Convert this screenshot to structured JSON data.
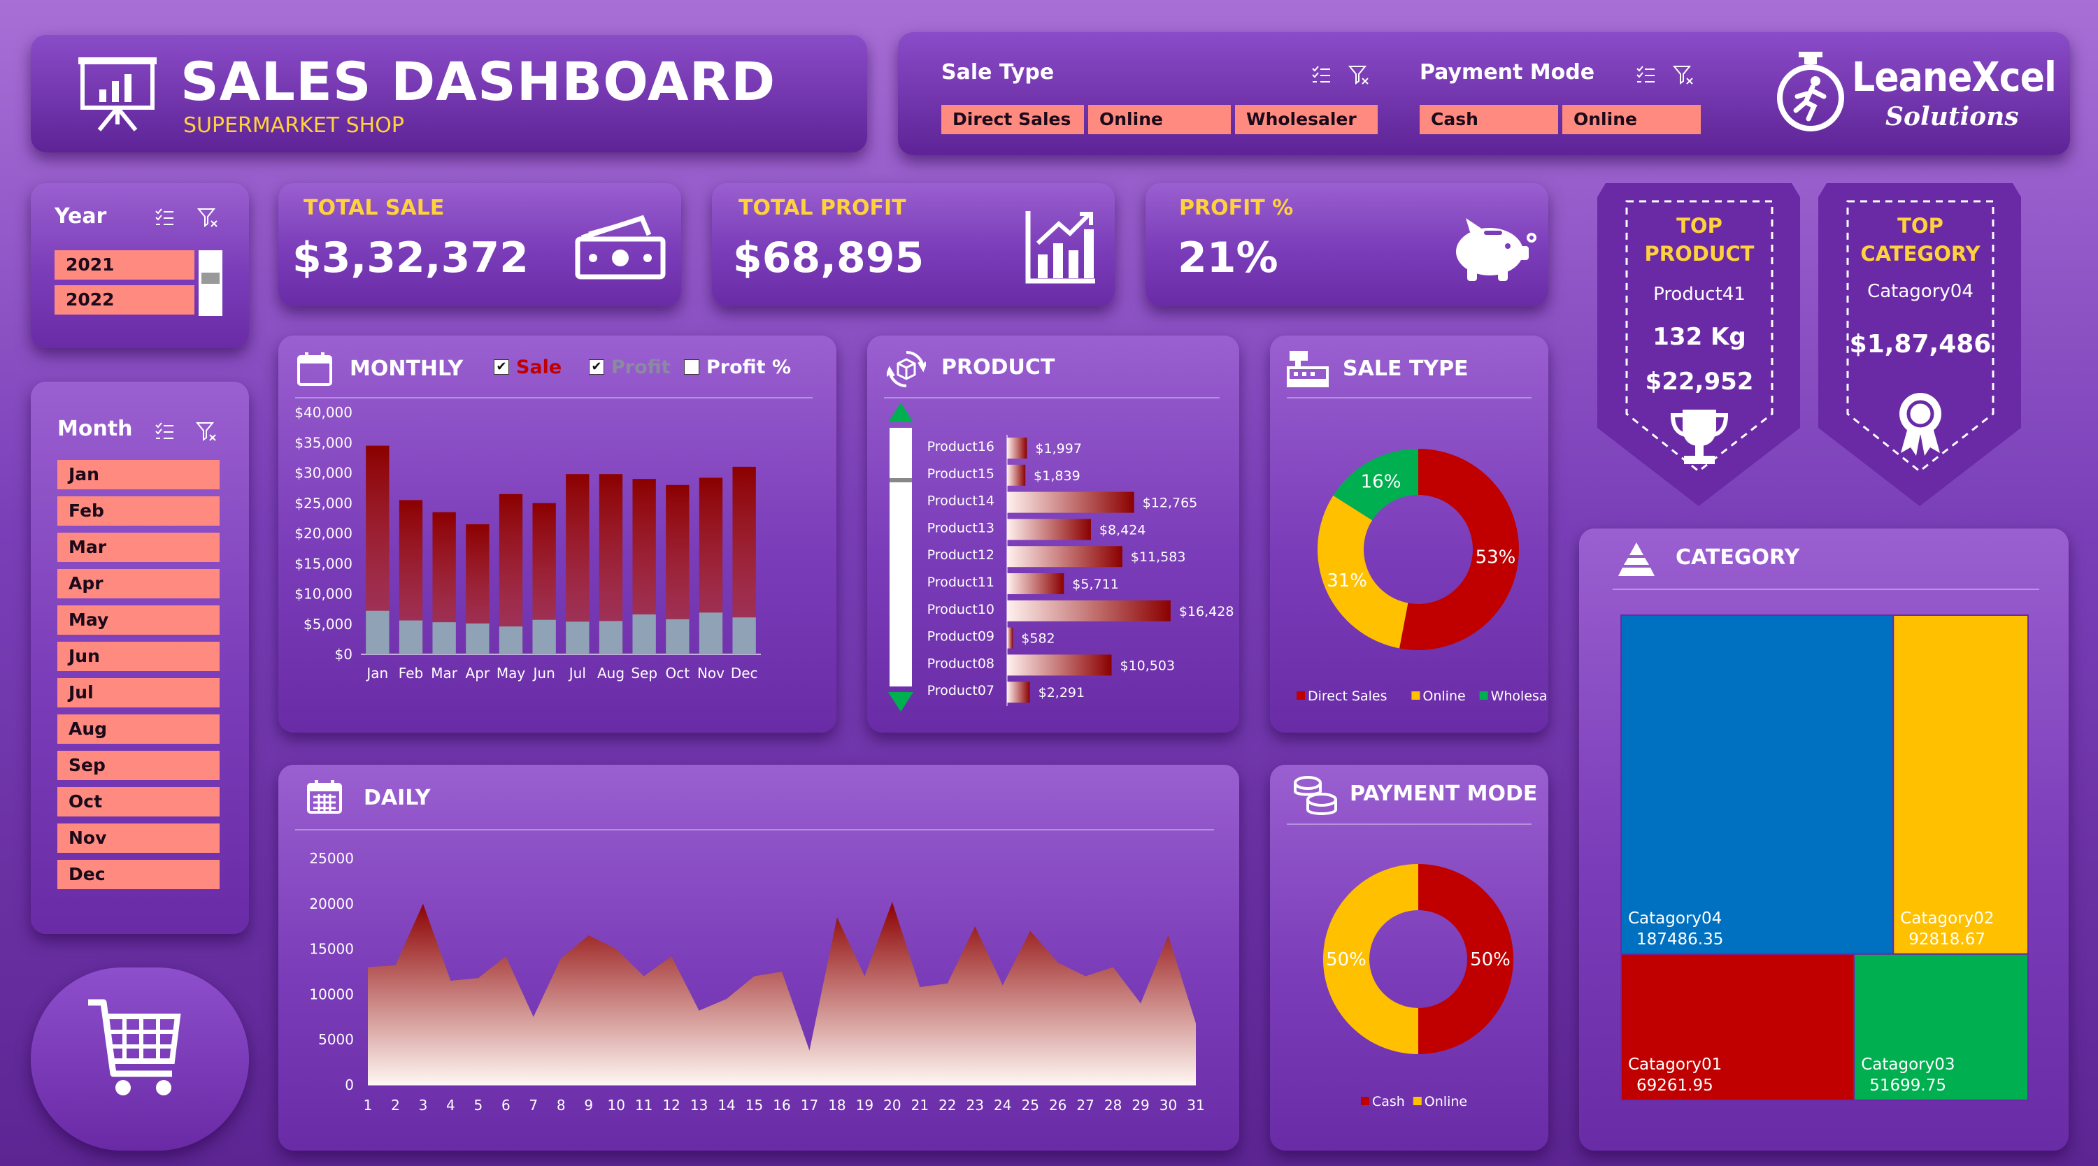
{
  "header": {
    "title": "SALES DASHBOARD",
    "subtitle": "SUPERMARKET SHOP"
  },
  "filters": {
    "sale_type": {
      "label": "Sale Type",
      "options": [
        "Direct Sales",
        "Online",
        "Wholesaler"
      ]
    },
    "payment_mode": {
      "label": "Payment Mode",
      "options": [
        "Cash",
        "Online"
      ]
    }
  },
  "logo": {
    "line1": "LeaneXcel",
    "line2": "Solutions"
  },
  "year_slicer": {
    "label": "Year",
    "items": [
      "2021",
      "2022"
    ]
  },
  "month_slicer": {
    "label": "Month",
    "items": [
      "Jan",
      "Feb",
      "Mar",
      "Apr",
      "May",
      "Jun",
      "Jul",
      "Aug",
      "Sep",
      "Oct",
      "Nov",
      "Dec"
    ]
  },
  "kpis": {
    "total_sale": {
      "label": "TOTAL SALE",
      "value": "$3,32,372"
    },
    "total_profit": {
      "label": "TOTAL PROFIT",
      "value": "$68,895"
    },
    "profit_pct": {
      "label": "PROFIT %",
      "value": "21%"
    }
  },
  "top_product": {
    "line1": "TOP",
    "line2": "PRODUCT",
    "name": "Product41",
    "qty": "132 Kg",
    "amount": "$22,952"
  },
  "top_category": {
    "line1": "TOP",
    "line2": "CATEGORY",
    "name": "Catagory04",
    "amount": "$1,87,486"
  },
  "monthly": {
    "title": "MONTHLY",
    "checks": [
      {
        "label": "Sale",
        "checked": true,
        "color": "#c00000"
      },
      {
        "label": "Profit",
        "checked": true,
        "color": "#8a8aa0"
      },
      {
        "label": "Profit %",
        "checked": false,
        "color": "#ffffff"
      }
    ]
  },
  "product_title": "PRODUCT",
  "saletype_title": "SALE TYPE",
  "daily_title": "DAILY",
  "payment_title": "PAYMENT MODE",
  "category_title": "CATEGORY",
  "chart_data": [
    {
      "id": "monthly",
      "type": "bar",
      "categories": [
        "Jan",
        "Feb",
        "Mar",
        "Apr",
        "May",
        "Jun",
        "Jul",
        "Aug",
        "Sep",
        "Oct",
        "Nov",
        "Dec"
      ],
      "series": [
        {
          "name": "Sale",
          "values": [
            34500,
            25500,
            23500,
            21500,
            26500,
            25000,
            29800,
            29800,
            29000,
            28000,
            29200,
            31000
          ]
        },
        {
          "name": "Profit",
          "values": [
            7200,
            5600,
            5300,
            5100,
            4600,
            5700,
            5400,
            5500,
            6600,
            5800,
            6900,
            6100
          ]
        }
      ],
      "yticks": [
        "$0",
        "$5,000",
        "$10,000",
        "$15,000",
        "$20,000",
        "$25,000",
        "$30,000",
        "$35,000",
        "$40,000"
      ],
      "ylim": [
        0,
        40000
      ]
    },
    {
      "id": "product",
      "type": "bar",
      "categories": [
        "Product16",
        "Product15",
        "Product14",
        "Product13",
        "Product12",
        "Product11",
        "Product10",
        "Product09",
        "Product08",
        "Product07"
      ],
      "values": [
        1997,
        1839,
        12765,
        8424,
        11583,
        5711,
        16428,
        582,
        10503,
        2291
      ],
      "labels": [
        "$1,997",
        "$1,839",
        "$12,765",
        "$8,424",
        "$11,583",
        "$5,711",
        "$16,428",
        "$582",
        "$10,503",
        "$2,291"
      ]
    },
    {
      "id": "saletype",
      "type": "pie",
      "labels": [
        "Direct Sales",
        "Online",
        "Wholesaler"
      ],
      "values": [
        53,
        31,
        16
      ],
      "value_labels": [
        "53%",
        "31%",
        "16%"
      ],
      "colors": [
        "#c00000",
        "#ffc000",
        "#00b050"
      ]
    },
    {
      "id": "daily",
      "type": "area",
      "x": [
        1,
        2,
        3,
        4,
        5,
        6,
        7,
        8,
        9,
        10,
        11,
        12,
        13,
        14,
        15,
        16,
        17,
        18,
        19,
        20,
        21,
        22,
        23,
        24,
        25,
        26,
        27,
        28,
        29,
        30,
        31
      ],
      "values": [
        13000,
        13200,
        20000,
        11500,
        11800,
        14200,
        7500,
        14000,
        16500,
        15000,
        12000,
        14200,
        8200,
        9500,
        12000,
        12500,
        3800,
        18500,
        12000,
        20200,
        10800,
        11200,
        17500,
        11000,
        17000,
        13500,
        12000,
        13000,
        9000,
        16500,
        6800
      ],
      "yticks": [
        "0",
        "5000",
        "10000",
        "15000",
        "20000",
        "25000"
      ],
      "ylim": [
        0,
        25000
      ]
    },
    {
      "id": "payment",
      "type": "pie",
      "labels": [
        "Cash",
        "Online"
      ],
      "values": [
        50,
        50
      ],
      "value_labels": [
        "50%",
        "50%"
      ],
      "colors": [
        "#c00000",
        "#ffc000"
      ]
    },
    {
      "id": "category",
      "type": "treemap",
      "labels": [
        "Catagory04",
        "Catagory02",
        "Catagory01",
        "Catagory03"
      ],
      "values": [
        "187486.35",
        "92818.67",
        "69261.95",
        "51699.75"
      ],
      "colors": [
        "#0070c0",
        "#ffc000",
        "#c00000",
        "#00b050"
      ]
    }
  ]
}
